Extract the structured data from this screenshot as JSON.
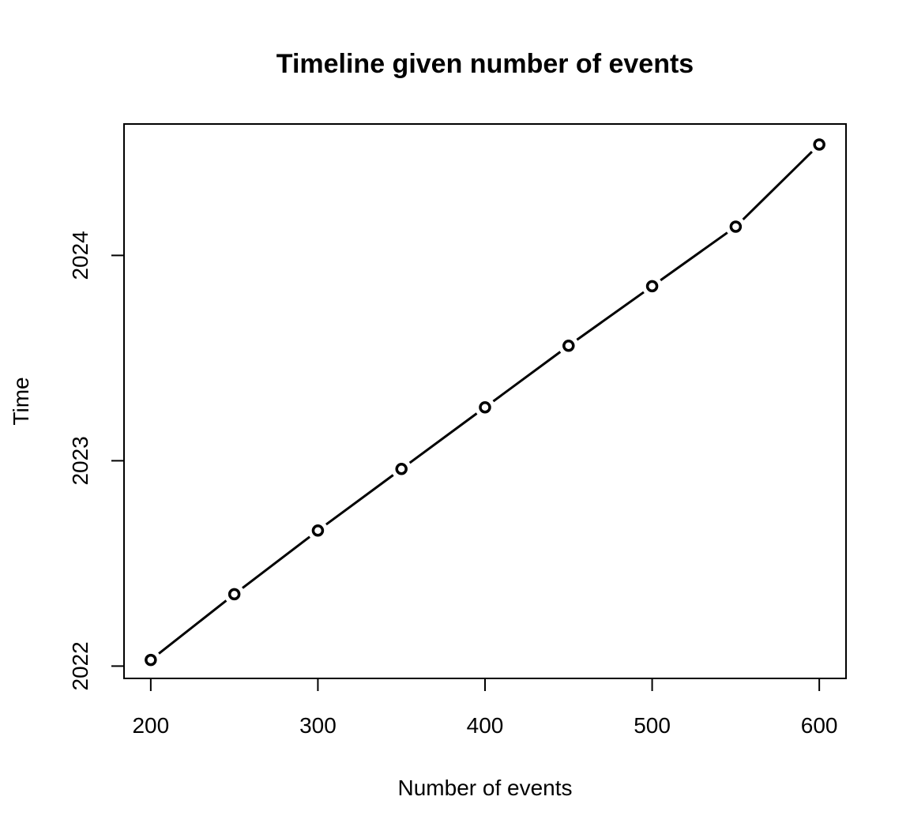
{
  "chart_data": {
    "type": "line",
    "title": "Timeline given number of events",
    "xlabel": "Number of events",
    "ylabel": "Time",
    "x": [
      200,
      250,
      300,
      350,
      400,
      450,
      500,
      550,
      600
    ],
    "y": [
      2022.03,
      2022.35,
      2022.66,
      2022.96,
      2023.26,
      2023.56,
      2023.85,
      2024.14,
      2024.54
    ],
    "xticks": [
      200,
      300,
      400,
      500,
      600
    ],
    "yticks": [
      2022,
      2023,
      2024
    ],
    "xlim": [
      184,
      616
    ],
    "ylim": [
      2021.94,
      2024.64
    ],
    "style": "overplotted",
    "grid": false,
    "series_color": "#000000"
  }
}
